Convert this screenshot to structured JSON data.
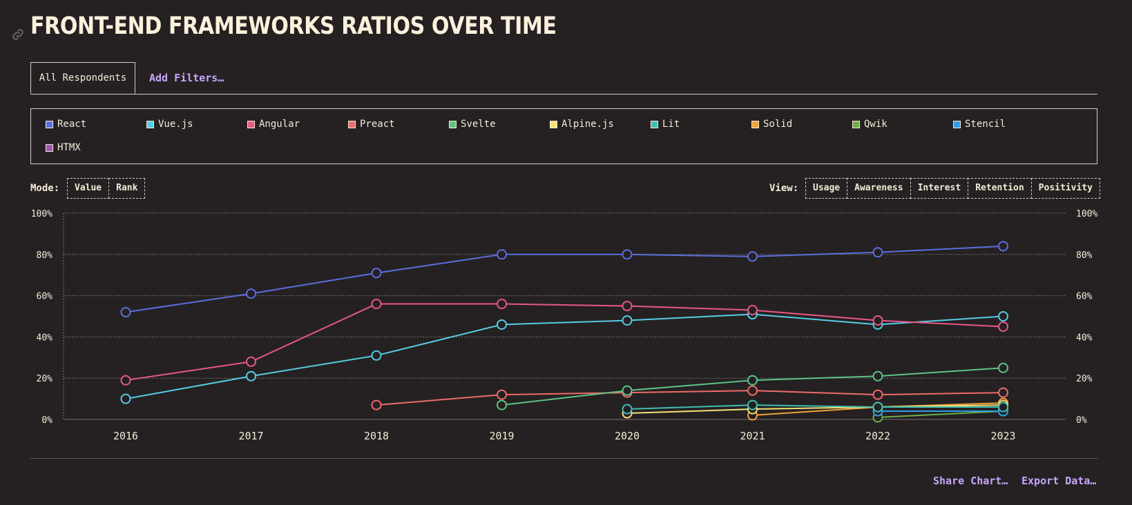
{
  "title": "FRONT-END FRAMEWORKS RATIOS OVER TIME",
  "tabs": {
    "active": "All Respondents",
    "add_filters": "Add Filters…"
  },
  "legend": [
    {
      "name": "React",
      "color": "#5b6ee1"
    },
    {
      "name": "Vue.js",
      "color": "#55cde6"
    },
    {
      "name": "Angular",
      "color": "#e8578a"
    },
    {
      "name": "Preact",
      "color": "#ef6b6b"
    },
    {
      "name": "Svelte",
      "color": "#5fc486"
    },
    {
      "name": "Alpine.js",
      "color": "#f6e07a"
    },
    {
      "name": "Lit",
      "color": "#3fbfb3"
    },
    {
      "name": "Solid",
      "color": "#f0a23a"
    },
    {
      "name": "Qwik",
      "color": "#6cb04a"
    },
    {
      "name": "Stencil",
      "color": "#2f9de6"
    },
    {
      "name": "HTMX",
      "color": "#9b59b6"
    }
  ],
  "mode": {
    "label": "Mode:",
    "options": [
      "Value",
      "Rank"
    ]
  },
  "view": {
    "label": "View:",
    "options": [
      "Usage",
      "Awareness",
      "Interest",
      "Retention",
      "Positivity"
    ]
  },
  "footer": {
    "share": "Share Chart…",
    "export": "Export Data…"
  },
  "chart_data": {
    "type": "line",
    "x": [
      2016,
      2017,
      2018,
      2019,
      2020,
      2021,
      2022,
      2023
    ],
    "y_ticks": [
      "0%",
      "20%",
      "40%",
      "60%",
      "80%",
      "100%"
    ],
    "ylim": [
      0,
      100
    ],
    "grid": true,
    "series": [
      {
        "name": "React",
        "color": "#5b6ee1",
        "values": [
          52,
          61,
          71,
          80,
          80,
          79,
          81,
          84
        ]
      },
      {
        "name": "Angular",
        "color": "#e8578a",
        "values": [
          19,
          28,
          56,
          56,
          55,
          53,
          48,
          45
        ]
      },
      {
        "name": "Vue.js",
        "color": "#55cde6",
        "values": [
          10,
          21,
          31,
          46,
          48,
          51,
          46,
          50
        ]
      },
      {
        "name": "Svelte",
        "color": "#5fc486",
        "values": [
          null,
          null,
          null,
          7,
          14,
          19,
          21,
          25
        ]
      },
      {
        "name": "Preact",
        "color": "#ef6b6b",
        "values": [
          null,
          null,
          7,
          12,
          13,
          14,
          12,
          13
        ]
      },
      {
        "name": "Lit",
        "color": "#3fbfb3",
        "values": [
          null,
          null,
          null,
          null,
          5,
          7,
          6,
          6
        ]
      },
      {
        "name": "Alpine.js",
        "color": "#f6e07a",
        "values": [
          null,
          null,
          null,
          null,
          3,
          5,
          6,
          7
        ]
      },
      {
        "name": "Solid",
        "color": "#f0a23a",
        "values": [
          null,
          null,
          null,
          null,
          null,
          2,
          6,
          8
        ]
      },
      {
        "name": "Stencil",
        "color": "#2f9de6",
        "values": [
          null,
          null,
          null,
          null,
          null,
          null,
          4,
          4
        ]
      },
      {
        "name": "Qwik",
        "color": "#6cb04a",
        "values": [
          null,
          null,
          null,
          null,
          null,
          null,
          1,
          4
        ]
      },
      {
        "name": "HTMX",
        "color": "#9b59b6",
        "values": [
          null,
          null,
          null,
          null,
          null,
          null,
          null,
          5
        ]
      }
    ]
  }
}
